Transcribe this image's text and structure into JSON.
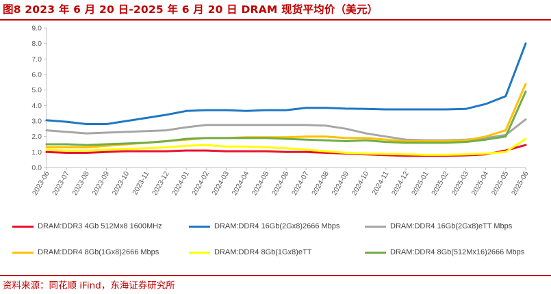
{
  "title": "图8  2023 年 6 月 20 日-2025 年 6 月 20 日 DRAM 现货平均价（美元）",
  "source": "资料来源：同花顺 iFind，东海证券研究所",
  "chart_data": {
    "type": "line",
    "title": "图8  2023 年 6 月 20 日-2025 年 6 月 20 日 DRAM 现货平均价（美元）",
    "xlabel": "",
    "ylabel": "",
    "ylim": [
      0,
      9
    ],
    "yticks": [
      "0.0",
      "1.0",
      "2.0",
      "3.0",
      "4.0",
      "5.0",
      "6.0",
      "7.0",
      "8.0",
      "9.0"
    ],
    "grid": false,
    "legend_position": "bottom",
    "categories": [
      "2023-06",
      "2023-07",
      "2023-08",
      "2023-09",
      "2023-10",
      "2023-11",
      "2023-12",
      "2024-01",
      "2024-02",
      "2024-03",
      "2024-04",
      "2024-05",
      "2024-06",
      "2024-07",
      "2024-08",
      "2024-09",
      "2024-10",
      "2024-11",
      "2024-12",
      "2025-01",
      "2025-02",
      "2025-03",
      "2025-04",
      "2025-05",
      "2025-06"
    ],
    "series": [
      {
        "name": "DRAM:DDR3 4Gb 512Mx8 1600MHz",
        "color": "#e8112d",
        "values": [
          1.0,
          0.95,
          0.95,
          1.0,
          1.05,
          1.05,
          1.05,
          1.1,
          1.1,
          1.05,
          1.05,
          1.05,
          1.0,
          1.0,
          0.95,
          0.9,
          0.85,
          0.8,
          0.75,
          0.75,
          0.75,
          0.78,
          0.85,
          1.1,
          1.45
        ]
      },
      {
        "name": "DRAM:DDR4 16Gb(2Gx8)2666 Mbps",
        "color": "#1f77c4",
        "values": [
          3.05,
          2.95,
          2.8,
          2.8,
          3.0,
          3.2,
          3.4,
          3.65,
          3.7,
          3.7,
          3.65,
          3.7,
          3.7,
          3.85,
          3.85,
          3.8,
          3.78,
          3.75,
          3.75,
          3.75,
          3.75,
          3.78,
          4.1,
          4.6,
          8.0
        ]
      },
      {
        "name": "DRAM:DDR4 16Gb(2Gx8)eTT Mbps",
        "color": "#a6a6a6",
        "values": [
          2.4,
          2.3,
          2.2,
          2.25,
          2.3,
          2.35,
          2.4,
          2.6,
          2.75,
          2.75,
          2.75,
          2.75,
          2.75,
          2.75,
          2.7,
          2.5,
          2.2,
          2.0,
          1.8,
          1.75,
          1.75,
          1.8,
          1.9,
          2.1,
          3.1
        ]
      },
      {
        "name": "DRAM:DDR4 8Gb(1Gx8)2666 Mbps",
        "color": "#ffc000",
        "values": [
          1.3,
          1.3,
          1.3,
          1.4,
          1.5,
          1.6,
          1.7,
          1.8,
          1.9,
          1.9,
          1.95,
          1.95,
          1.95,
          2.0,
          2.0,
          1.9,
          1.9,
          1.8,
          1.7,
          1.7,
          1.7,
          1.75,
          2.0,
          2.4,
          5.4
        ]
      },
      {
        "name": "DRAM:DDR4 8Gb(1Gx8)eTT",
        "color": "#ffff00",
        "values": [
          1.15,
          1.1,
          1.1,
          1.15,
          1.2,
          1.25,
          1.3,
          1.4,
          1.45,
          1.35,
          1.35,
          1.3,
          1.25,
          1.15,
          1.05,
          0.95,
          0.9,
          0.88,
          0.85,
          0.82,
          0.82,
          0.85,
          0.9,
          1.0,
          1.85
        ]
      },
      {
        "name": "DRAM:DDR4 8Gb(512Mx16)2666 Mbps",
        "color": "#70ad47",
        "values": [
          1.5,
          1.5,
          1.45,
          1.5,
          1.55,
          1.6,
          1.7,
          1.85,
          1.9,
          1.9,
          1.9,
          1.9,
          1.85,
          1.8,
          1.75,
          1.7,
          1.75,
          1.65,
          1.6,
          1.6,
          1.6,
          1.65,
          1.8,
          2.0,
          4.9
        ]
      }
    ]
  }
}
